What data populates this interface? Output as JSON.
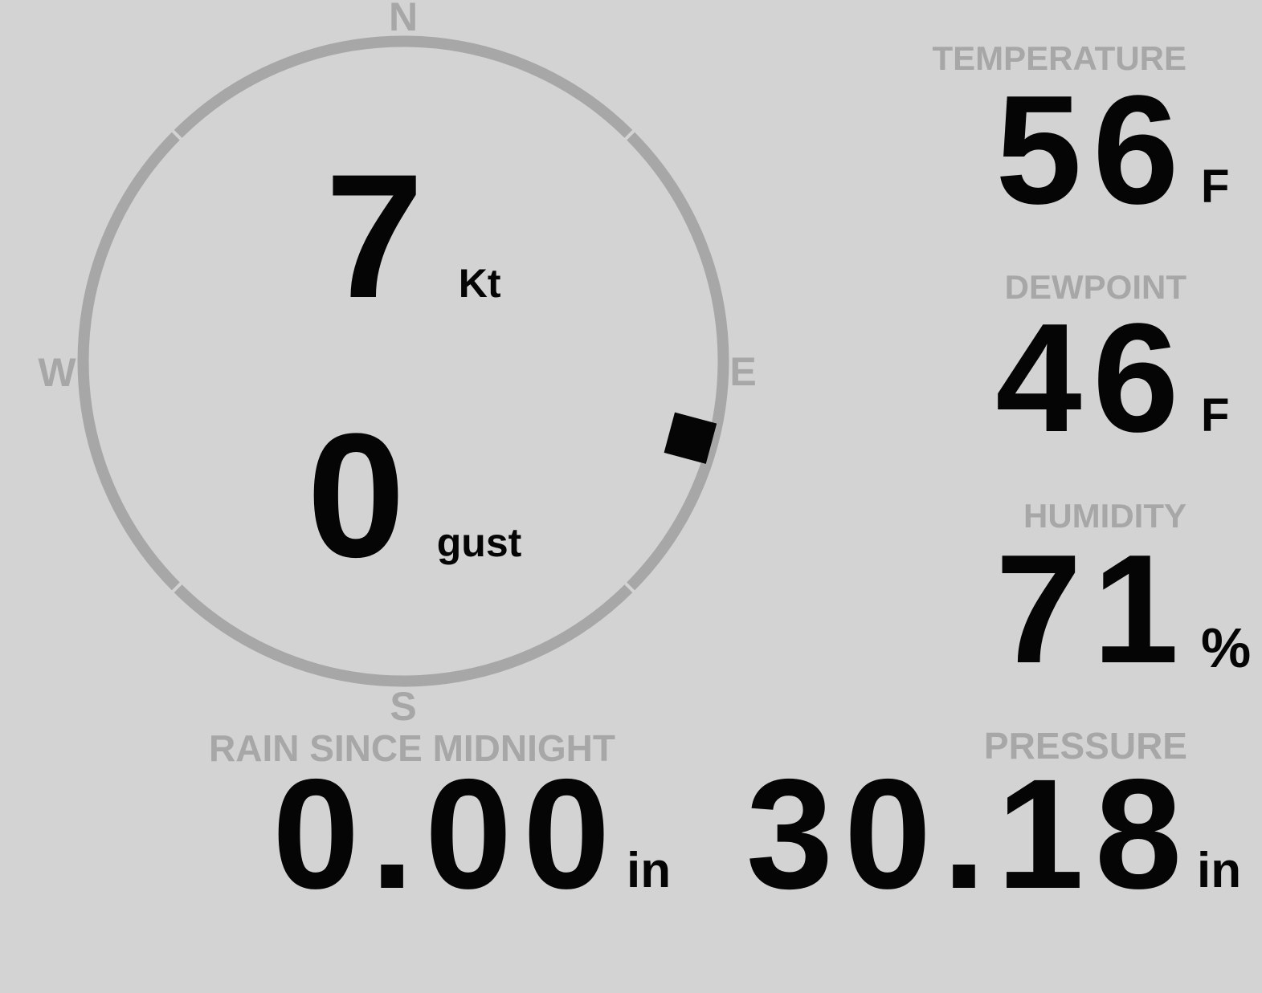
{
  "theme": {
    "background": "#d3d3d3",
    "muted_gray": "#a7a7a7",
    "ink_black": "#050505"
  },
  "wind": {
    "speed_value": "7",
    "speed_unit": "Kt",
    "gust_value": "0",
    "gust_unit": "gust",
    "direction_degrees": 105,
    "compass_labels": {
      "north": "N",
      "east": "E",
      "south": "S",
      "west": "W"
    }
  },
  "metrics": [
    {
      "label": "TEMPERATURE",
      "value": "56",
      "unit": "F"
    },
    {
      "label": "DEWPOINT",
      "value": "46",
      "unit": "F"
    },
    {
      "label": "HUMIDITY",
      "value": "71",
      "unit": "%"
    }
  ],
  "bottom_metrics": [
    {
      "label": "RAIN SINCE MIDNIGHT",
      "value": "0.00",
      "unit": "in"
    },
    {
      "label": "PRESSURE",
      "value": "30.18",
      "unit": "in"
    }
  ]
}
